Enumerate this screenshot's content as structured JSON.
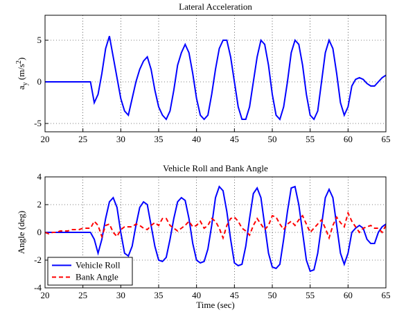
{
  "chart_data": [
    {
      "type": "line",
      "title": "Lateral Acceleration",
      "ylabel": {
        "base": "a",
        "sub": "y",
        "unit": " (m/s",
        "sup": "2",
        "close": ")"
      },
      "xlim": [
        20,
        65
      ],
      "xticks": [
        20,
        25,
        30,
        35,
        40,
        45,
        50,
        55,
        60,
        65
      ],
      "ylim": [
        -6,
        8
      ],
      "yticks": [
        -5,
        0,
        5
      ],
      "grid": true,
      "x": [
        20,
        20.5,
        21,
        21.5,
        22,
        22.5,
        23,
        23.5,
        24,
        24.5,
        25,
        25.5,
        26,
        26.5,
        27,
        27.5,
        28,
        28.5,
        29,
        29.5,
        30,
        30.5,
        31,
        31.5,
        32,
        32.5,
        33,
        33.5,
        34,
        34.5,
        35,
        35.5,
        36,
        36.5,
        37,
        37.5,
        38,
        38.5,
        39,
        39.5,
        40,
        40.5,
        41,
        41.5,
        42,
        42.5,
        43,
        43.5,
        44,
        44.5,
        45,
        45.5,
        46,
        46.5,
        47,
        47.5,
        48,
        48.5,
        49,
        49.5,
        50,
        50.5,
        51,
        51.5,
        52,
        52.5,
        53,
        53.5,
        54,
        54.5,
        55,
        55.5,
        56,
        56.5,
        57,
        57.5,
        58,
        58.5,
        59,
        59.5,
        60,
        60.5,
        61,
        61.5,
        62,
        62.5,
        63,
        63.5,
        64,
        64.5,
        65
      ],
      "series": [
        {
          "color": "#0000ff",
          "style": "solid",
          "values": [
            0,
            0,
            0,
            0,
            0,
            0,
            0,
            0,
            0,
            0,
            0,
            0,
            0,
            -2.5,
            -1.5,
            1,
            4,
            5.5,
            3,
            0.5,
            -2,
            -3.5,
            -4,
            -2,
            0,
            1.5,
            2.5,
            3,
            1.5,
            -1,
            -3,
            -4,
            -4.5,
            -3.5,
            -1,
            2,
            3.5,
            4.5,
            3.5,
            1,
            -2,
            -4,
            -4.5,
            -4,
            -1.5,
            1.5,
            4,
            5,
            5,
            3,
            0,
            -3,
            -4.5,
            -4.5,
            -3,
            0,
            3,
            5,
            4.5,
            2,
            -1.5,
            -4,
            -4.5,
            -3,
            0,
            3.5,
            5,
            4.5,
            2,
            -1.5,
            -4,
            -4.5,
            -3.5,
            0,
            3.5,
            5,
            4,
            1,
            -2.5,
            -4,
            -3,
            -0.5,
            0.3,
            0.5,
            0.3,
            -0.2,
            -0.5,
            -0.5,
            0,
            0.5,
            0.8
          ]
        }
      ]
    },
    {
      "type": "line",
      "title": "Vehicle Roll and Bank Angle",
      "ylabel": "Angle (deg)",
      "xlabel": "Time (sec)",
      "xlim": [
        20,
        65
      ],
      "xticks": [
        20,
        25,
        30,
        35,
        40,
        45,
        50,
        55,
        60,
        65
      ],
      "ylim": [
        -4,
        4
      ],
      "yticks": [
        -4,
        -2,
        0,
        2,
        4
      ],
      "grid": true,
      "legend": "lower-left",
      "x": [
        20,
        20.5,
        21,
        21.5,
        22,
        22.5,
        23,
        23.5,
        24,
        24.5,
        25,
        25.5,
        26,
        26.5,
        27,
        27.5,
        28,
        28.5,
        29,
        29.5,
        30,
        30.5,
        31,
        31.5,
        32,
        32.5,
        33,
        33.5,
        34,
        34.5,
        35,
        35.5,
        36,
        36.5,
        37,
        37.5,
        38,
        38.5,
        39,
        39.5,
        40,
        40.5,
        41,
        41.5,
        42,
        42.5,
        43,
        43.5,
        44,
        44.5,
        45,
        45.5,
        46,
        46.5,
        47,
        47.5,
        48,
        48.5,
        49,
        49.5,
        50,
        50.5,
        51,
        51.5,
        52,
        52.5,
        53,
        53.5,
        54,
        54.5,
        55,
        55.5,
        56,
        56.5,
        57,
        57.5,
        58,
        58.5,
        59,
        59.5,
        60,
        60.5,
        61,
        61.5,
        62,
        62.5,
        63,
        63.5,
        64,
        64.5,
        65
      ],
      "series": [
        {
          "name": "Vehicle Roll",
          "color": "#0000ff",
          "style": "solid",
          "values": [
            0,
            0,
            0,
            0,
            0,
            0,
            0,
            0,
            0,
            0,
            0,
            0,
            0,
            -0.5,
            -1.5,
            -0.5,
            1,
            2.2,
            2.5,
            1.8,
            0,
            -1.5,
            -1.7,
            -1,
            0.5,
            1.8,
            2.2,
            2,
            0.5,
            -1,
            -2,
            -2.1,
            -1.8,
            -0.5,
            1,
            2.2,
            2.5,
            2.3,
            1,
            -0.8,
            -2,
            -2.2,
            -2.1,
            -1.2,
            0.5,
            2.5,
            3.3,
            3,
            1.5,
            -0.5,
            -2.2,
            -2.4,
            -2.3,
            -1,
            1,
            2.8,
            3.2,
            2.5,
            0.5,
            -1.5,
            -2.5,
            -2.6,
            -2.3,
            -0.5,
            1.5,
            3.2,
            3.3,
            2,
            0,
            -2,
            -2.8,
            -2.7,
            -1.5,
            0.5,
            2.5,
            3.1,
            2.5,
            0.5,
            -1.5,
            -2.3,
            -1.5,
            0,
            0.3,
            0.5,
            0.3,
            -0.5,
            -0.8,
            -0.8,
            0,
            0.4,
            0.6
          ]
        },
        {
          "name": "Bank Angle",
          "color": "#ff0000",
          "style": "dashed",
          "values": [
            0,
            -0.1,
            0,
            0,
            0.1,
            0.1,
            0.1,
            0.2,
            0.2,
            0.2,
            0.3,
            0.3,
            0.3,
            0.8,
            0.5,
            -0.3,
            0.5,
            0.6,
            0,
            -0.3,
            0.2,
            0.4,
            0.4,
            0.4,
            0.6,
            0.5,
            0.3,
            0.2,
            0.5,
            0.7,
            0.5,
            1,
            1,
            0.5,
            0.3,
            0.1,
            0.3,
            0.5,
            0.8,
            0.4,
            0.5,
            0.8,
            0.3,
            0.5,
            1,
            0.8,
            0.3,
            -0.4,
            0.5,
            1,
            1.1,
            0.8,
            0.3,
            0.1,
            -0.2,
            0.5,
            1,
            0.6,
            0.2,
            0.5,
            1.2,
            1.1,
            0.6,
            0.2,
            0.6,
            0.8,
            0.5,
            0.9,
            1.2,
            0.6,
            0,
            0.3,
            0.6,
            0.9,
            0.3,
            -0.4,
            0.5,
            1.1,
            0.7,
            0.4,
            1.4,
            0.8,
            0.4,
            0,
            0.3,
            0.4,
            0.5,
            0.3,
            0.3,
            0,
            0.5
          ]
        }
      ]
    }
  ]
}
